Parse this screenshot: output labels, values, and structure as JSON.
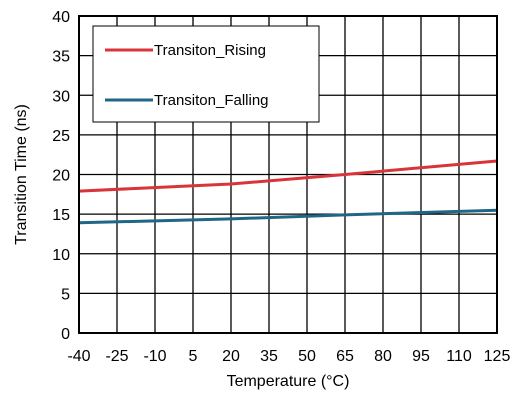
{
  "chart_data": {
    "type": "line",
    "title": "",
    "xlabel": "Temperature (°C)",
    "ylabel": "Transition Time (ns)",
    "xlim": [
      -40,
      125
    ],
    "ylim": [
      0,
      40
    ],
    "x_ticks": [
      "-40",
      "-25",
      "-10",
      "5",
      "20",
      "35",
      "50",
      "65",
      "80",
      "95",
      "110",
      "125"
    ],
    "y_ticks": [
      "0",
      "5",
      "10",
      "15",
      "20",
      "25",
      "30",
      "35",
      "40"
    ],
    "grid": true,
    "legend_position": "top-left",
    "series": [
      {
        "name": "Transiton_Rising",
        "color": "#d9343a",
        "x": [
          -40,
          20,
          65,
          125
        ],
        "y": [
          17.9,
          18.8,
          20.0,
          21.7
        ]
      },
      {
        "name": "Transiton_Falling",
        "color": "#1f6787",
        "x": [
          -40,
          20,
          65,
          125
        ],
        "y": [
          13.9,
          14.4,
          14.9,
          15.5
        ]
      }
    ]
  }
}
